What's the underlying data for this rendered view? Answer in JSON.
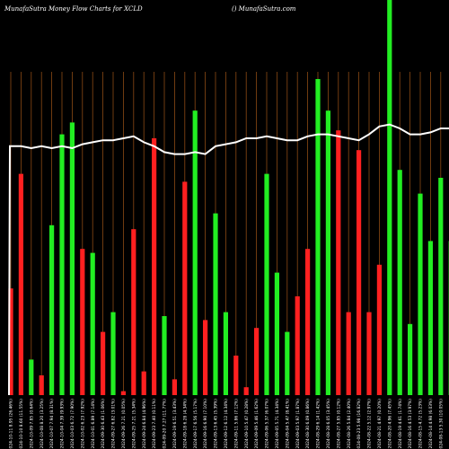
{
  "header": {
    "title": "MunafaSutra  Money Flow  Charts for XCLD",
    "watermark": "() MunafaSutra.com"
  },
  "colors": {
    "background": "#000000",
    "up": "#22ee22",
    "down": "#ff2020",
    "gridline": "#8b4a14",
    "line": "#ffffff"
  },
  "chart_data": {
    "type": "bar",
    "title": "MunafaSutra  Money Flow  Charts for XCLD",
    "ylim": [
      0,
      100
    ],
    "categories": [
      "2024-10-11 8.95 (26.46%)",
      "2024-10-10 8.60 (11.55%)",
      "2024-10-09 7.85 (0.64%)",
      "2024-10-08 8.20 (3.25%)",
      "2024-10-07 7.94 (8.31%)",
      "2024-10-04 7.39 (9.93%)",
      "2024-10-03 6.72 (7.90%)",
      "2024-10-02 6.23 (7.92%)",
      "2024-10-01 6.89 (7.14%)",
      "2024-09-30 6.43 (1.06%)",
      "2024-09-27 6.82 (3.01%)",
      "2024-09-26 7.21 (0.05%)",
      "2024-09-25 7.21 (5.34%)",
      "2024-09-24 6.84 (4.96%)",
      "2024-09-23 7.40 (0.11%)",
      "2024-09-20 7.27 (11.77%)",
      "2024-09-19 6.51 (3.43%)",
      "2024-09-18 6.28 (4.34%)",
      "2024-09-17 6.56 (5.17%)",
      "2024-09-16 6.90 (7.10%)",
      "2024-09-13 6.45 (5.39%)",
      "2024-09-12 6.12 (4.34%)",
      "2024-09-11 5.86 (7.12%)",
      "2024-09-10 5.47 (0.28%)",
      "2024-09-09 5.46 (1.62%)",
      "2024-09-06 5.37 (6.07%)",
      "2024-09-05 5.71 (4.34%)",
      "2024-09-04 5.47 (8.41%)",
      "2024-09-03 5.97 (1.87%)",
      "2024-08-30 6.09 (0.86%)",
      "2024-08-29 6.14 (1.42%)",
      "2024-08-28 6.05 (3.45%)",
      "2024-08-27 5.85 (0.12%)",
      "2024-08-26 5.84 (2.40%)",
      "2024-08-23 5.98 (16.82%)",
      "2024-08-22 5.12 (2.97%)",
      "2024-08-21 4.97 (0.20%)",
      "2024-08-20 4.96 (7.45%)",
      "2024-08-19 4.61 (1.74%)",
      "2024-08-16 4.53 (3.97%)",
      "2024-08-15 4.72 (5.23%)",
      "2024-08-14 4.98 (6.03%)",
      "2024-08-13 5.30 (10.05%)",
      "2024-08-12 5.89 (2.92%)"
    ],
    "series": [
      {
        "values": [
          27,
          56,
          9,
          5,
          43,
          66,
          69,
          37,
          36,
          16,
          21,
          1,
          42,
          6,
          65,
          20,
          4,
          54,
          72,
          19,
          46,
          21,
          10,
          2,
          17,
          56,
          31,
          16,
          25,
          37,
          80,
          72,
          67,
          21,
          62,
          21,
          33,
          100,
          57,
          18,
          51,
          39,
          55,
          39
        ],
        "direction": [
          "down",
          "down",
          "up",
          "down",
          "up",
          "up",
          "up",
          "down",
          "up",
          "down",
          "up",
          "down",
          "down",
          "down",
          "down",
          "up",
          "down",
          "down",
          "up",
          "down",
          "up",
          "up",
          "down",
          "down",
          "down",
          "up",
          "up",
          "up",
          "down",
          "down",
          "up",
          "up",
          "down",
          "down",
          "down",
          "down",
          "down",
          "up",
          "up",
          "up",
          "up",
          "up",
          "up",
          "up"
        ]
      },
      {
        "type": "line",
        "values": [
          63,
          63,
          62.5,
          63,
          62.5,
          63,
          62.5,
          63.5,
          64,
          64.5,
          64.5,
          65,
          65.5,
          64,
          63,
          61.5,
          61,
          61,
          61.5,
          61,
          63,
          63.5,
          64,
          65,
          65,
          65.5,
          65,
          64.5,
          64.5,
          65.5,
          66,
          66,
          65.5,
          65,
          64.5,
          66,
          68,
          68.5,
          67.5,
          66,
          66,
          66.5,
          67.5,
          67.5
        ]
      }
    ]
  }
}
